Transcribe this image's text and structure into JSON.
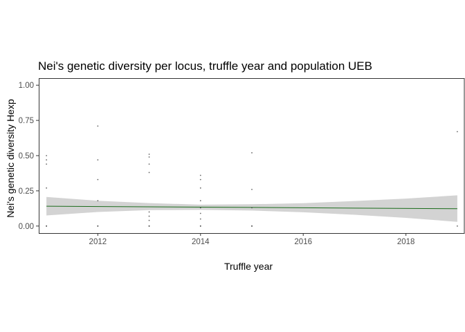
{
  "chart_data": {
    "type": "scatter",
    "title": "Nei's genetic diversity per locus, truffle year and population UEB",
    "xlabel": "Truffle year",
    "ylabel": "Nei's genetic diversity Hexp",
    "xlim": [
      2010.85,
      2019.15
    ],
    "ylim": [
      -0.05,
      1.05
    ],
    "x_ticks": [
      2012,
      2014,
      2016,
      2018
    ],
    "x_tick_labels": [
      "2012",
      "2014",
      "2016",
      "2018"
    ],
    "y_ticks": [
      0,
      0.25,
      0.5,
      0.75,
      1
    ],
    "y_tick_labels": [
      "0.00",
      "0.25",
      "0.50",
      "0.75",
      "1.00"
    ],
    "grid": false,
    "colors": {
      "points": "#333333",
      "trend": "#1a6b1a",
      "band": "#d3d3d3",
      "frame": "#333333"
    },
    "points": [
      {
        "x": 2011,
        "y": 0.5
      },
      {
        "x": 2011,
        "y": 0.47
      },
      {
        "x": 2011,
        "y": 0.44
      },
      {
        "x": 2011,
        "y": 0.27
      },
      {
        "x": 2011,
        "y": 0.0
      },
      {
        "x": 2011,
        "y": 0.0
      },
      {
        "x": 2012,
        "y": 0.71
      },
      {
        "x": 2012,
        "y": 0.47
      },
      {
        "x": 2012,
        "y": 0.33
      },
      {
        "x": 2012,
        "y": 0.18
      },
      {
        "x": 2012,
        "y": 0.0
      },
      {
        "x": 2012,
        "y": 0.0
      },
      {
        "x": 2013,
        "y": 0.51
      },
      {
        "x": 2013,
        "y": 0.49
      },
      {
        "x": 2013,
        "y": 0.44
      },
      {
        "x": 2013,
        "y": 0.38
      },
      {
        "x": 2013,
        "y": 0.1
      },
      {
        "x": 2013,
        "y": 0.07
      },
      {
        "x": 2013,
        "y": 0.04
      },
      {
        "x": 2013,
        "y": 0.0
      },
      {
        "x": 2013,
        "y": 0.0
      },
      {
        "x": 2014,
        "y": 0.36
      },
      {
        "x": 2014,
        "y": 0.33
      },
      {
        "x": 2014,
        "y": 0.27
      },
      {
        "x": 2014,
        "y": 0.18
      },
      {
        "x": 2014,
        "y": 0.13
      },
      {
        "x": 2014,
        "y": 0.09
      },
      {
        "x": 2014,
        "y": 0.05
      },
      {
        "x": 2014,
        "y": 0.0
      },
      {
        "x": 2014,
        "y": 0.0
      },
      {
        "x": 2015,
        "y": 0.52
      },
      {
        "x": 2015,
        "y": 0.26
      },
      {
        "x": 2015,
        "y": 0.13
      },
      {
        "x": 2015,
        "y": 0.0
      },
      {
        "x": 2015,
        "y": 0.0
      },
      {
        "x": 2019,
        "y": 0.67
      },
      {
        "x": 2019,
        "y": 0.0
      }
    ],
    "trend": {
      "x": [
        2011,
        2019
      ],
      "y": [
        0.141,
        0.123
      ]
    },
    "ci_band": {
      "x": [
        2011,
        2012,
        2013,
        2014,
        2015,
        2016,
        2017,
        2018,
        2019
      ],
      "lower": [
        0.075,
        0.1,
        0.113,
        0.115,
        0.11,
        0.098,
        0.08,
        0.058,
        0.03
      ],
      "upper": [
        0.207,
        0.18,
        0.163,
        0.152,
        0.155,
        0.162,
        0.178,
        0.195,
        0.218
      ]
    }
  }
}
